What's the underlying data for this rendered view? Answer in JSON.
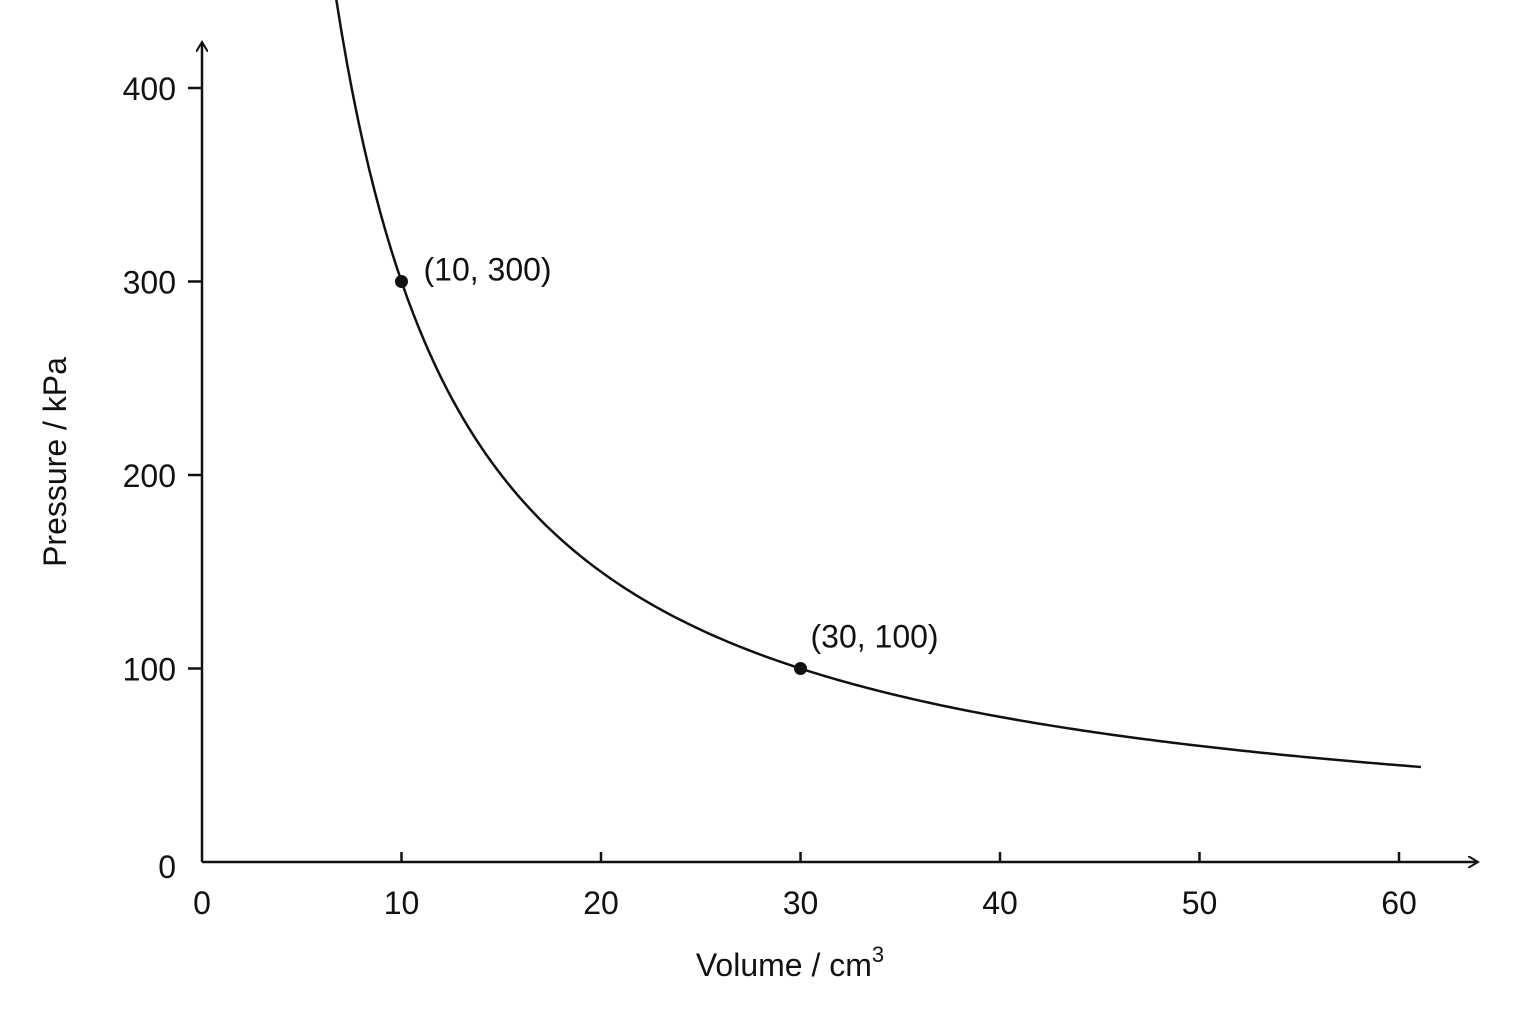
{
  "chart_data": {
    "type": "line",
    "xlabel": "Volume / cm",
    "xlabel_superscript": "3",
    "ylabel": "Pressure / kPa",
    "xlim": [
      0,
      64
    ],
    "ylim": [
      0,
      420
    ],
    "x_ticks": [
      0,
      10,
      20,
      30,
      40,
      50,
      60
    ],
    "y_ticks": [
      0,
      100,
      200,
      300,
      400
    ],
    "x_tick_labels": [
      "0",
      "10",
      "20",
      "30",
      "40",
      "50",
      "60"
    ],
    "y_tick_labels": [
      "0",
      "100",
      "200",
      "300",
      "400"
    ],
    "grid": false,
    "legend": "none",
    "series": [
      {
        "relation": "P = 3000 / V",
        "x_range": [
          5.6,
          61.1
        ],
        "color": "#111111"
      }
    ],
    "points": [
      {
        "x": 10,
        "y": 300,
        "label": "(10, 300)"
      },
      {
        "x": 30,
        "y": 100,
        "label": "(30, 100)"
      }
    ]
  }
}
